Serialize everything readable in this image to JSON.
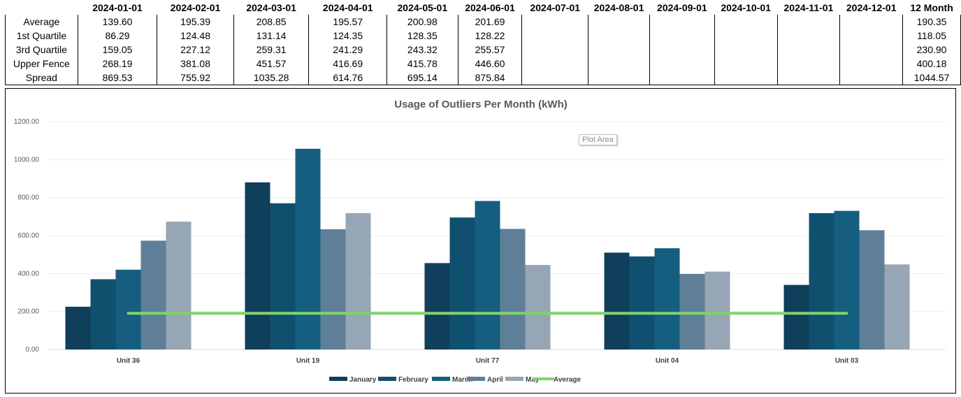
{
  "table": {
    "headers": [
      "",
      "2024-01-01",
      "2024-02-01",
      "2024-03-01",
      "2024-04-01",
      "2024-05-01",
      "2024-06-01",
      "2024-07-01",
      "2024-08-01",
      "2024-09-01",
      "2024-10-01",
      "2024-11-01",
      "2024-12-01",
      "12 Month"
    ],
    "rows": [
      {
        "label": "Average",
        "values": [
          "139.60",
          "195.39",
          "208.85",
          "195.57",
          "200.98",
          "201.69",
          "",
          "",
          "",
          "",
          "",
          "",
          "190.35"
        ]
      },
      {
        "label": "1st Quartile",
        "values": [
          "86.29",
          "124.48",
          "131.14",
          "124.35",
          "128.35",
          "128.22",
          "",
          "",
          "",
          "",
          "",
          "",
          "118.05"
        ]
      },
      {
        "label": "3rd Quartile",
        "values": [
          "159.05",
          "227.12",
          "259.31",
          "241.29",
          "243.32",
          "255.57",
          "",
          "",
          "",
          "",
          "",
          "",
          "230.90"
        ]
      },
      {
        "label": "Upper Fence",
        "values": [
          "268.19",
          "381.08",
          "451.57",
          "416.69",
          "415.78",
          "446.60",
          "",
          "",
          "",
          "",
          "",
          "",
          "400.18"
        ]
      },
      {
        "label": "Spread",
        "values": [
          "869.53",
          "755.92",
          "1035.28",
          "614.76",
          "695.14",
          "875.84",
          "",
          "",
          "",
          "",
          "",
          "",
          "1044.57"
        ]
      }
    ]
  },
  "tooltip": {
    "text": "Plot Area"
  },
  "chart_data": {
    "type": "bar",
    "title": "Usage of Outliers Per Month (kWh)",
    "categories": [
      "Unit 36",
      "Unit 19",
      "Unit 77",
      "Unit 04",
      "Unit 03"
    ],
    "ylim": [
      0,
      1200
    ],
    "yticks": [
      "0.00",
      "200.00",
      "400.00",
      "600.00",
      "800.00",
      "1000.00",
      "1200.00"
    ],
    "grid": true,
    "legend_position": "bottom",
    "series": [
      {
        "name": "January",
        "color": "#0f3f5a",
        "values": [
          225,
          880,
          455,
          510,
          340
        ]
      },
      {
        "name": "February",
        "color": "#10506f",
        "values": [
          370,
          770,
          695,
          490,
          718
        ]
      },
      {
        "name": "March",
        "color": "#155e80",
        "values": [
          420,
          1057,
          782,
          533,
          730
        ]
      },
      {
        "name": "April",
        "color": "#5f7f99",
        "values": [
          573,
          633,
          635,
          398,
          628
        ]
      },
      {
        "name": "May",
        "color": "#97a6b4",
        "values": [
          673,
          718,
          445,
          410,
          448
        ]
      }
    ],
    "line": {
      "name": "Average",
      "color": "#7fd46a",
      "value": 190.35
    }
  }
}
